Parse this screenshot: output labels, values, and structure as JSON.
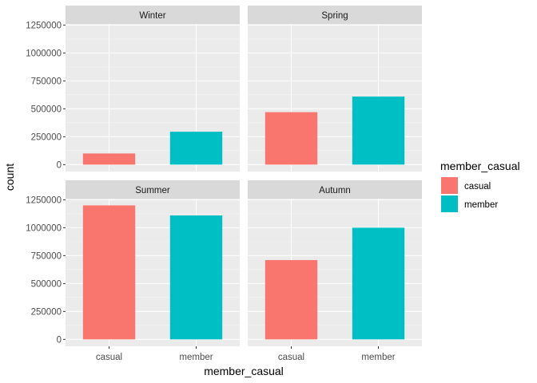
{
  "chart_data": {
    "type": "bar",
    "facet": "season",
    "xlabel": "member_casual",
    "ylabel": "count",
    "ylim": [
      0,
      1260000
    ],
    "yticks": [
      0,
      250000,
      500000,
      750000,
      1000000,
      1250000
    ],
    "ytick_labels": [
      "0",
      "250000",
      "500000",
      "750000",
      "1000000",
      "1250000"
    ],
    "categories": [
      "casual",
      "member"
    ],
    "colors": {
      "casual": "#F8766D",
      "member": "#00BFC4"
    },
    "grid": true,
    "legend": {
      "title": "member_casual",
      "placement": "right",
      "entries": [
        "casual",
        "member"
      ]
    },
    "panels": [
      {
        "label": "Winter",
        "values": [
          100000,
          295000
        ]
      },
      {
        "label": "Spring",
        "values": [
          470000,
          610000
        ]
      },
      {
        "label": "Summer",
        "values": [
          1200000,
          1110000
        ]
      },
      {
        "label": "Autumn",
        "values": [
          710000,
          1000000
        ]
      }
    ]
  }
}
